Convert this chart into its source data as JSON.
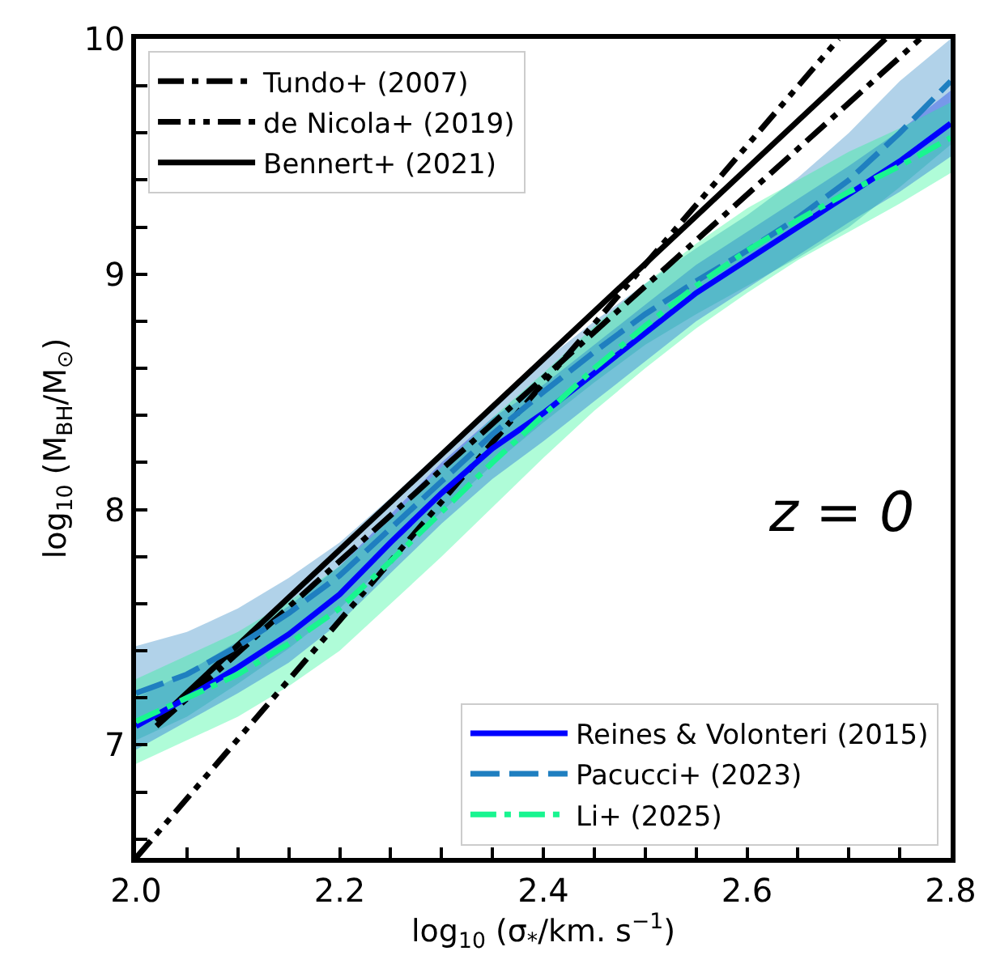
{
  "chart_data": {
    "type": "line",
    "xlabel": "log$_{10}$ (σ$_{*}$/km. s$^{−1}$)",
    "ylabel": "log$_{10}$ (M$_{BH}$/M$_{⊙}$)",
    "xlim": [
      2.0,
      2.8
    ],
    "ylim": [
      6.52,
      10.0
    ],
    "xticks": [
      {
        "value": 2.0,
        "label": "2.0"
      },
      {
        "value": 2.05,
        "label": null
      },
      {
        "value": 2.1,
        "label": null
      },
      {
        "value": 2.15,
        "label": null
      },
      2.2,
      {
        "value": 2.25,
        "label": null
      },
      {
        "value": 2.3,
        "label": null
      },
      {
        "value": 2.35,
        "label": null
      },
      2.4,
      {
        "value": 2.45,
        "label": null
      },
      {
        "value": 2.5,
        "label": null
      },
      {
        "value": 2.55,
        "label": null
      },
      2.6,
      {
        "value": 2.65,
        "label": null
      },
      {
        "value": 2.7,
        "label": null
      },
      {
        "value": 2.75,
        "label": null
      },
      2.8
    ],
    "yticks": [
      {
        "value": 6.6,
        "label": null
      },
      {
        "value": 6.8,
        "label": null
      },
      7,
      {
        "value": 7.2,
        "label": null
      },
      {
        "value": 7.4,
        "label": null
      },
      {
        "value": 7.6,
        "label": null
      },
      {
        "value": 7.8,
        "label": null
      },
      8,
      {
        "value": 8.2,
        "label": null
      },
      {
        "value": 8.4,
        "label": null
      },
      {
        "value": 8.6,
        "label": null
      },
      {
        "value": 8.8,
        "label": null
      },
      9,
      {
        "value": 9.2,
        "label": null
      },
      {
        "value": 9.4,
        "label": null
      },
      {
        "value": 9.6,
        "label": null
      },
      {
        "value": 9.8,
        "label": null
      },
      10
    ],
    "marker": "none",
    "legend": [
      "top left",
      "bottom right"
    ],
    "annotations": [
      "z = 0"
    ],
    "series": [
      {
        "name": "Tundo+ (2007)",
        "color": "#000000",
        "line_style": "dashdot",
        "x": [
          2.02,
          2.77
        ],
        "values": [
          7.08,
          10.0
        ]
      },
      {
        "name": "de Nicola+ (2019)",
        "color": "#000000",
        "line_style": "dashdotdot",
        "x": [
          2.0,
          2.69
        ],
        "values": [
          6.52,
          10.0
        ]
      },
      {
        "name": "Bennert+ (2021)",
        "color": "#000000",
        "line_style": "solid",
        "x": [
          2.02,
          2.736
        ],
        "values": [
          7.1,
          10.0
        ]
      },
      {
        "name": "Reines & Volonteri (2015)",
        "color": "#0000ff",
        "line_style": "solid",
        "x": [
          2.0,
          2.05,
          2.1,
          2.15,
          2.2,
          2.25,
          2.3,
          2.35,
          2.4,
          2.45,
          2.5,
          2.55,
          2.6,
          2.65,
          2.7,
          2.75,
          2.8
        ],
        "values": [
          7.08,
          7.2,
          7.33,
          7.47,
          7.64,
          7.86,
          8.07,
          8.26,
          8.41,
          8.58,
          8.75,
          8.92,
          9.06,
          9.2,
          9.34,
          9.48,
          9.64
        ],
        "lower": [
          6.98,
          7.1,
          7.22,
          7.35,
          7.52,
          7.73,
          7.94,
          8.13,
          8.29,
          8.46,
          8.63,
          8.8,
          8.94,
          9.08,
          9.22,
          9.35,
          9.5
        ],
        "upper": [
          7.2,
          7.31,
          7.44,
          7.59,
          7.76,
          7.98,
          8.2,
          8.39,
          8.53,
          8.7,
          8.87,
          9.04,
          9.18,
          9.32,
          9.46,
          9.61,
          9.78
        ]
      },
      {
        "name": "Pacucci+ (2023)",
        "color": "#1f7fc0",
        "line_style": "dashed",
        "x": [
          2.0,
          2.05,
          2.1,
          2.15,
          2.2,
          2.25,
          2.3,
          2.35,
          2.4,
          2.45,
          2.5,
          2.55,
          2.6,
          2.65,
          2.7,
          2.75,
          2.8
        ],
        "values": [
          7.22,
          7.3,
          7.42,
          7.56,
          7.72,
          7.92,
          8.12,
          8.32,
          8.5,
          8.67,
          8.83,
          8.97,
          9.1,
          9.24,
          9.4,
          9.6,
          9.82
        ],
        "lower": [
          7.02,
          7.12,
          7.26,
          7.41,
          7.58,
          7.79,
          7.99,
          8.19,
          8.37,
          8.54,
          8.7,
          8.83,
          8.95,
          9.07,
          9.2,
          9.37,
          9.55
        ],
        "upper": [
          7.42,
          7.48,
          7.58,
          7.71,
          7.86,
          8.05,
          8.25,
          8.45,
          8.63,
          8.8,
          8.96,
          9.11,
          9.25,
          9.41,
          9.6,
          9.82,
          10.0
        ]
      },
      {
        "name": "Li+ (2025)",
        "color": "#19f590",
        "line_style": "dashdot",
        "x": [
          2.0,
          2.05,
          2.1,
          2.15,
          2.2,
          2.25,
          2.3,
          2.35,
          2.4,
          2.45,
          2.5,
          2.55,
          2.6,
          2.65,
          2.7,
          2.75,
          2.8
        ],
        "values": [
          7.1,
          7.2,
          7.3,
          7.43,
          7.58,
          7.78,
          7.99,
          8.2,
          8.4,
          8.6,
          8.78,
          8.95,
          9.1,
          9.23,
          9.35,
          9.46,
          9.58
        ],
        "lower": [
          6.92,
          7.02,
          7.12,
          7.25,
          7.4,
          7.6,
          7.8,
          8.01,
          8.22,
          8.42,
          8.6,
          8.77,
          8.92,
          9.06,
          9.18,
          9.3,
          9.43
        ],
        "upper": [
          7.28,
          7.38,
          7.48,
          7.61,
          7.76,
          7.96,
          8.18,
          8.39,
          8.58,
          8.78,
          8.96,
          9.13,
          9.28,
          9.4,
          9.52,
          9.62,
          9.73
        ]
      }
    ]
  }
}
